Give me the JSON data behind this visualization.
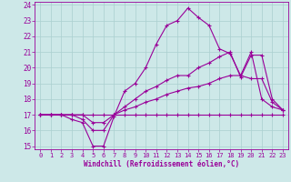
{
  "xlabel": "Windchill (Refroidissement éolien,°C)",
  "background_color": "#cde8e8",
  "grid_color": "#aacfcf",
  "line_color": "#990099",
  "xlim": [
    -0.5,
    23.5
  ],
  "ylim": [
    14.8,
    24.2
  ],
  "xticks": [
    0,
    1,
    2,
    3,
    4,
    5,
    6,
    7,
    8,
    9,
    10,
    11,
    12,
    13,
    14,
    15,
    16,
    17,
    18,
    19,
    20,
    21,
    22,
    23
  ],
  "yticks": [
    15,
    16,
    17,
    18,
    19,
    20,
    21,
    22,
    23,
    24
  ],
  "series": [
    [
      17.0,
      17.0,
      17.0,
      16.7,
      16.5,
      15.0,
      15.0,
      16.9,
      18.5,
      19.0,
      20.0,
      21.5,
      22.7,
      23.0,
      23.8,
      23.2,
      22.7,
      21.2,
      20.9,
      19.5,
      21.0,
      18.0,
      17.5,
      17.3
    ],
    [
      17.0,
      17.0,
      17.0,
      17.0,
      16.7,
      16.0,
      16.0,
      17.0,
      17.5,
      18.0,
      18.5,
      18.8,
      19.2,
      19.5,
      19.5,
      20.0,
      20.3,
      20.7,
      21.0,
      19.4,
      20.8,
      20.8,
      18.0,
      17.3
    ],
    [
      17.0,
      17.0,
      17.0,
      17.0,
      17.0,
      16.5,
      16.5,
      17.0,
      17.3,
      17.5,
      17.8,
      18.0,
      18.3,
      18.5,
      18.7,
      18.8,
      19.0,
      19.3,
      19.5,
      19.5,
      19.3,
      19.3,
      17.8,
      17.3
    ],
    [
      17.0,
      17.0,
      17.0,
      17.0,
      17.0,
      17.0,
      17.0,
      17.0,
      17.0,
      17.0,
      17.0,
      17.0,
      17.0,
      17.0,
      17.0,
      17.0,
      17.0,
      17.0,
      17.0,
      17.0,
      17.0,
      17.0,
      17.0,
      17.0
    ]
  ]
}
